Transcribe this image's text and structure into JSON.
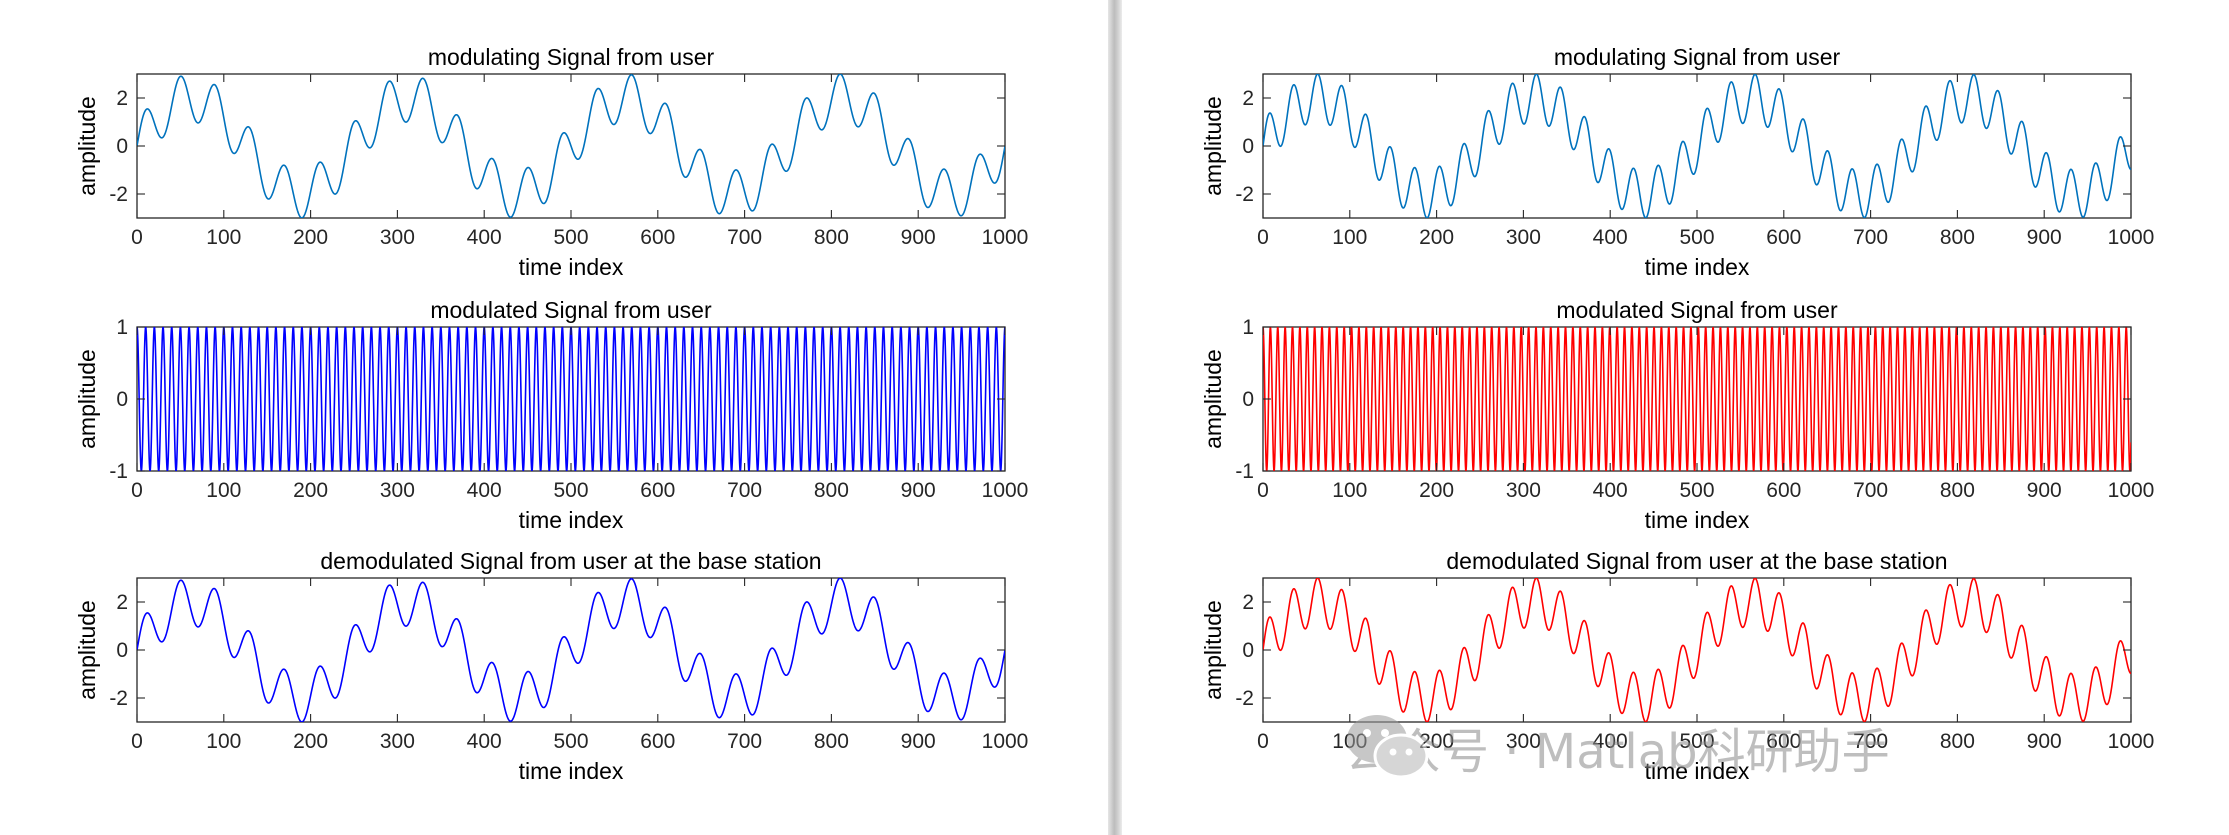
{
  "colors": {
    "left_top": "#0072BD",
    "left_mid": "#0000FF",
    "left_bottom": "#0000FF",
    "right_top": "#0072BD",
    "right_mid": "#FF0000",
    "right_bottom": "#FF0000"
  },
  "watermark": {
    "icon": "wechat-icon",
    "text": "公众号 · Matlab科研助手"
  },
  "chart_data": [
    {
      "type": "line",
      "panel": "left-top",
      "title": "modulating Signal from user",
      "xlabel": "time index",
      "ylabel": "amplitude",
      "xlim": [
        0,
        1000
      ],
      "ylim": [
        -3,
        3
      ],
      "xticks": [
        0,
        100,
        200,
        300,
        400,
        500,
        600,
        700,
        800,
        900,
        1000
      ],
      "yticks": [
        -2,
        0,
        2
      ],
      "ytick_labels": [
        "-2",
        "0",
        "2"
      ],
      "color_key": "left_top",
      "grid": false,
      "series": [
        {
          "signal": "2*sin(2*pi*x/250) + sin(2*pi*x/40)"
        }
      ]
    },
    {
      "type": "line",
      "panel": "left-mid",
      "title": "modulated Signal from user",
      "xlabel": "time index",
      "ylabel": "amplitude",
      "xlim": [
        0,
        1000
      ],
      "ylim": [
        -1,
        1
      ],
      "xticks": [
        0,
        100,
        200,
        300,
        400,
        500,
        600,
        700,
        800,
        900,
        1000
      ],
      "yticks": [
        -1,
        0,
        1
      ],
      "ytick_labels": [
        "-1",
        "0",
        "1"
      ],
      "color_key": "left_mid",
      "grid": false,
      "series": [
        {
          "signal": "cos(2*pi*x/10)"
        }
      ]
    },
    {
      "type": "line",
      "panel": "left-bottom",
      "title": "demodulated Signal from user at the base station",
      "xlabel": "time index",
      "ylabel": "amplitude",
      "xlim": [
        0,
        1000
      ],
      "ylim": [
        -3,
        3
      ],
      "xticks": [
        0,
        100,
        200,
        300,
        400,
        500,
        600,
        700,
        800,
        900,
        1000
      ],
      "yticks": [
        -2,
        0,
        2
      ],
      "ytick_labels": [
        "-2",
        "0",
        "2"
      ],
      "color_key": "left_bottom",
      "grid": false,
      "series": [
        {
          "signal": "2*sin(2*pi*x/250) + sin(2*pi*x/40)"
        }
      ]
    },
    {
      "type": "line",
      "panel": "right-top",
      "title": "modulating Signal from user",
      "xlabel": "time index",
      "ylabel": "amplitude",
      "xlim": [
        0,
        1000
      ],
      "ylim": [
        -3,
        3
      ],
      "xticks": [
        0,
        100,
        200,
        300,
        400,
        500,
        600,
        700,
        800,
        900,
        1000
      ],
      "yticks": [
        -2,
        0,
        2
      ],
      "ytick_labels": [
        "-2",
        "0",
        "2"
      ],
      "color_key": "right_top",
      "grid": false,
      "series": [
        {
          "signal": "2*sin(2*pi*x/250) + sin(2*pi*x/28)"
        }
      ]
    },
    {
      "type": "line",
      "panel": "right-mid",
      "title": "modulated Signal from user",
      "xlabel": "time index",
      "ylabel": "amplitude",
      "xlim": [
        0,
        1000
      ],
      "ylim": [
        -1,
        1
      ],
      "xticks": [
        0,
        100,
        200,
        300,
        400,
        500,
        600,
        700,
        800,
        900,
        1000
      ],
      "yticks": [
        -1,
        0,
        1
      ],
      "ytick_labels": [
        "-1",
        "0",
        "1"
      ],
      "color_key": "right_mid",
      "grid": false,
      "series": [
        {
          "signal": "cos(2*pi*x/8.5)"
        }
      ]
    },
    {
      "type": "line",
      "panel": "right-bottom",
      "title": "demodulated Signal from user at the base station",
      "xlabel": "time index",
      "ylabel": "amplitude",
      "xlim": [
        0,
        1000
      ],
      "ylim": [
        -3,
        3
      ],
      "xticks": [
        0,
        100,
        200,
        300,
        400,
        500,
        600,
        700,
        800,
        900,
        1000
      ],
      "yticks": [
        -2,
        0,
        2
      ],
      "ytick_labels": [
        "-2",
        "0",
        "2"
      ],
      "color_key": "right_bottom",
      "grid": false,
      "series": [
        {
          "signal": "2*sin(2*pi*x/250) + sin(2*pi*x/28)"
        }
      ]
    }
  ]
}
